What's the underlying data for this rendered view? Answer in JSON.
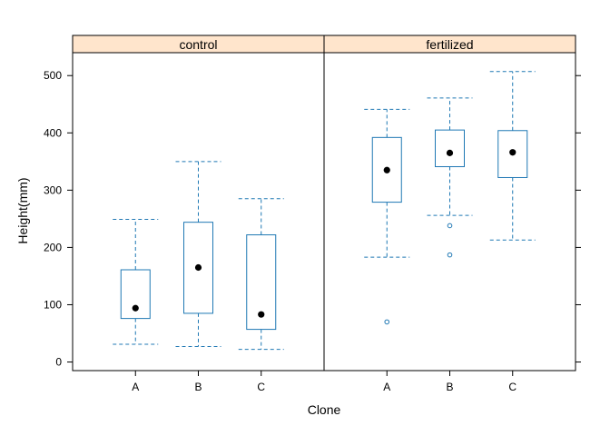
{
  "chart_data": {
    "type": "boxplot",
    "xlabel": "Clone",
    "ylabel": "Height(mm)",
    "ylim": [
      -15,
      540
    ],
    "yticks": [
      0,
      100,
      200,
      300,
      400,
      500
    ],
    "categories": [
      "A",
      "B",
      "C"
    ],
    "grid": false,
    "colors": {
      "box": "#1f78b4",
      "strip": "#ffe5cc",
      "median": "#000000"
    },
    "panels": [
      {
        "label": "control",
        "boxes": [
          {
            "category": "A",
            "min": 31,
            "q1": 76,
            "median": 94,
            "q3": 161,
            "max": 249,
            "outliers": []
          },
          {
            "category": "B",
            "min": 27,
            "q1": 85,
            "median": 165,
            "q3": 244,
            "max": 350,
            "outliers": []
          },
          {
            "category": "C",
            "min": 22,
            "q1": 57,
            "median": 83,
            "q3": 222,
            "max": 285,
            "outliers": []
          }
        ]
      },
      {
        "label": "fertilized",
        "boxes": [
          {
            "category": "A",
            "min": 183,
            "q1": 279,
            "median": 335,
            "q3": 392,
            "max": 441,
            "outliers": [
              70
            ]
          },
          {
            "category": "B",
            "min": 256,
            "q1": 341,
            "median": 365,
            "q3": 405,
            "max": 461,
            "outliers": [
              238,
              187
            ]
          },
          {
            "category": "C",
            "min": 213,
            "q1": 322,
            "median": 366,
            "q3": 404,
            "max": 507,
            "outliers": []
          }
        ]
      }
    ]
  }
}
